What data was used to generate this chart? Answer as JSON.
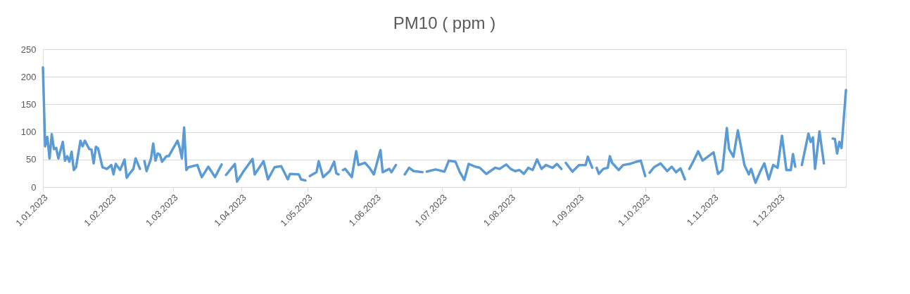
{
  "chart_data": {
    "type": "line",
    "title": "PM10 ( ppm )",
    "x": [
      "2023-01-01",
      "2023-01-02",
      "2023-01-03",
      "2023-01-04",
      "2023-01-05",
      "2023-01-06",
      "2023-01-07",
      "2023-01-08",
      "2023-01-10",
      "2023-01-11",
      "2023-01-12",
      "2023-01-13",
      "2023-01-14",
      "2023-01-15",
      "2023-01-16",
      "2023-01-18",
      "2023-01-19",
      "2023-01-20",
      "2023-01-22",
      "2023-01-23",
      "2023-01-24",
      "2023-01-25",
      "2023-01-26",
      "2023-01-28",
      "2023-01-30",
      "2023-02-01",
      "2023-02-02",
      "2023-02-03",
      "2023-02-05",
      "2023-02-07",
      "2023-02-08",
      "2023-02-09",
      "2023-02-11",
      "2023-02-12",
      "2023-02-14",
      "2023-02-15",
      "2023-02-16",
      "2023-02-17",
      "2023-02-19",
      "2023-02-20",
      "2023-02-21",
      "2023-02-22",
      "2023-02-23",
      "2023-02-24",
      "2023-02-26",
      "2023-02-27",
      "2023-03-03",
      "2023-03-04",
      "2023-03-05",
      "2023-03-06",
      "2023-03-07",
      "2023-03-08",
      "2023-03-12",
      "2023-03-14",
      "2023-03-17",
      "2023-03-20",
      "2023-03-23",
      "2023-03-24",
      "2023-03-25",
      "2023-03-29",
      "2023-03-30",
      "2023-04-02",
      "2023-04-06",
      "2023-04-07",
      "2023-04-11",
      "2023-04-13",
      "2023-04-16",
      "2023-04-19",
      "2023-04-22",
      "2023-04-23",
      "2023-04-27",
      "2023-04-28",
      "2023-04-30",
      "2023-05-01",
      "2023-05-02",
      "2023-05-05",
      "2023-05-06",
      "2023-05-08",
      "2023-05-11",
      "2023-05-13",
      "2023-05-14",
      "2023-05-15",
      "2023-05-16",
      "2023-05-17",
      "2023-05-18",
      "2023-05-21",
      "2023-05-23",
      "2023-05-24",
      "2023-05-27",
      "2023-05-29",
      "2023-05-31",
      "2023-06-03",
      "2023-06-04",
      "2023-06-07",
      "2023-06-08",
      "2023-06-10",
      "2023-06-12",
      "2023-06-14",
      "2023-06-16",
      "2023-06-18",
      "2023-06-22",
      "2023-06-23",
      "2023-06-24",
      "2023-06-28",
      "2023-07-02",
      "2023-07-04",
      "2023-07-07",
      "2023-07-09",
      "2023-07-11",
      "2023-07-13",
      "2023-07-16",
      "2023-07-18",
      "2023-07-21",
      "2023-07-25",
      "2023-07-27",
      "2023-07-30",
      "2023-08-01",
      "2023-08-03",
      "2023-08-05",
      "2023-08-07",
      "2023-08-09",
      "2023-08-11",
      "2023-08-13",
      "2023-08-15",
      "2023-08-17",
      "2023-08-20",
      "2023-08-22",
      "2023-08-24",
      "2023-08-25",
      "2023-08-26",
      "2023-08-29",
      "2023-09-01",
      "2023-09-04",
      "2023-09-05",
      "2023-09-07",
      "2023-09-08",
      "2023-09-09",
      "2023-09-10",
      "2023-09-12",
      "2023-09-14",
      "2023-09-15",
      "2023-09-16",
      "2023-09-19",
      "2023-09-21",
      "2023-09-24",
      "2023-09-27",
      "2023-09-29",
      "2023-10-01",
      "2023-10-02",
      "2023-10-03",
      "2023-10-05",
      "2023-10-08",
      "2023-10-11",
      "2023-10-13",
      "2023-10-15",
      "2023-10-17",
      "2023-10-19",
      "2023-10-20",
      "2023-10-21",
      "2023-10-23",
      "2023-10-25",
      "2023-10-27",
      "2023-11-01",
      "2023-11-03",
      "2023-11-05",
      "2023-11-07",
      "2023-11-08",
      "2023-11-10",
      "2023-11-12",
      "2023-11-15",
      "2023-11-17",
      "2023-11-18",
      "2023-11-20",
      "2023-11-22",
      "2023-11-24",
      "2023-11-26",
      "2023-11-28",
      "2023-11-30",
      "2023-12-02",
      "2023-12-04",
      "2023-12-06",
      "2023-12-07",
      "2023-12-08",
      "2023-12-09",
      "2023-12-11",
      "2023-12-14",
      "2023-12-15",
      "2023-12-16",
      "2023-12-17",
      "2023-12-19",
      "2023-12-21",
      "2023-12-23",
      "2023-12-25",
      "2023-12-26",
      "2023-12-27",
      "2023-12-28",
      "2023-12-29",
      "2023-12-31"
    ],
    "series": [
      {
        "color": "#5b9bd5",
        "values": [
          217,
          74,
          91,
          52,
          96,
          69,
          71,
          52,
          82,
          48,
          56,
          46,
          64,
          31,
          36,
          84,
          74,
          84,
          69,
          68,
          43,
          73,
          70,
          36,
          33,
          40,
          23,
          42,
          31,
          50,
          17,
          23,
          33,
          52,
          33,
          null,
          47,
          29,
          52,
          79,
          48,
          61,
          59,
          46,
          56,
          56,
          84,
          71,
          52,
          108,
          31,
          36,
          40,
          18,
          37,
          18,
          41,
          null,
          22,
          42,
          10,
          29,
          51,
          23,
          47,
          14,
          36,
          38,
          14,
          24,
          23,
          14,
          12,
          null,
          20,
          27,
          47,
          18,
          29,
          46,
          25,
          23,
          null,
          31,
          33,
          18,
          65,
          40,
          44,
          35,
          23,
          67,
          27,
          33,
          27,
          40,
          null,
          23,
          35,
          29,
          27,
          null,
          28,
          32,
          28,
          48,
          46,
          27,
          13,
          42,
          37,
          35,
          24,
          35,
          33,
          41,
          33,
          29,
          31,
          24,
          35,
          31,
          50,
          33,
          40,
          35,
          42,
          33,
          null,
          44,
          28,
          40,
          40,
          55,
          35,
          null,
          35,
          24,
          33,
          35,
          56,
          44,
          31,
          40,
          42,
          46,
          48,
          20,
          null,
          26,
          36,
          43,
          29,
          37,
          27,
          34,
          14,
          null,
          33,
          48,
          65,
          48,
          63,
          24,
          31,
          107,
          69,
          55,
          103,
          40,
          23,
          33,
          8,
          27,
          43,
          14,
          40,
          35,
          93,
          31,
          31,
          60,
          37,
          null,
          40,
          97,
          82,
          90,
          33,
          101,
          43,
          null,
          88,
          87,
          61,
          82,
          71,
          176
        ]
      }
    ],
    "xlim": [
      "2023-01-01",
      "2023-12-31"
    ],
    "xticks": [
      {
        "value": "2023-01-01",
        "label": "1.01.2023"
      },
      {
        "value": "2023-02-01",
        "label": "1.02.2023"
      },
      {
        "value": "2023-03-01",
        "label": "1.03.2023"
      },
      {
        "value": "2023-04-01",
        "label": "1.04.2023"
      },
      {
        "value": "2023-05-01",
        "label": "1.05.2023"
      },
      {
        "value": "2023-06-01",
        "label": "1.06.2023"
      },
      {
        "value": "2023-07-01",
        "label": "1.07.2023"
      },
      {
        "value": "2023-08-01",
        "label": "1.08.2023"
      },
      {
        "value": "2023-09-01",
        "label": "1.09.2023"
      },
      {
        "value": "2023-10-01",
        "label": "1.10.2023"
      },
      {
        "value": "2023-11-01",
        "label": "1.11.2023"
      },
      {
        "value": "2023-12-01",
        "label": "1.12.2023"
      }
    ],
    "ylim": [
      0,
      250
    ],
    "yticks": [
      0,
      50,
      100,
      150,
      200,
      250
    ],
    "grid": "y",
    "marker": "none",
    "line_style": "solid"
  }
}
